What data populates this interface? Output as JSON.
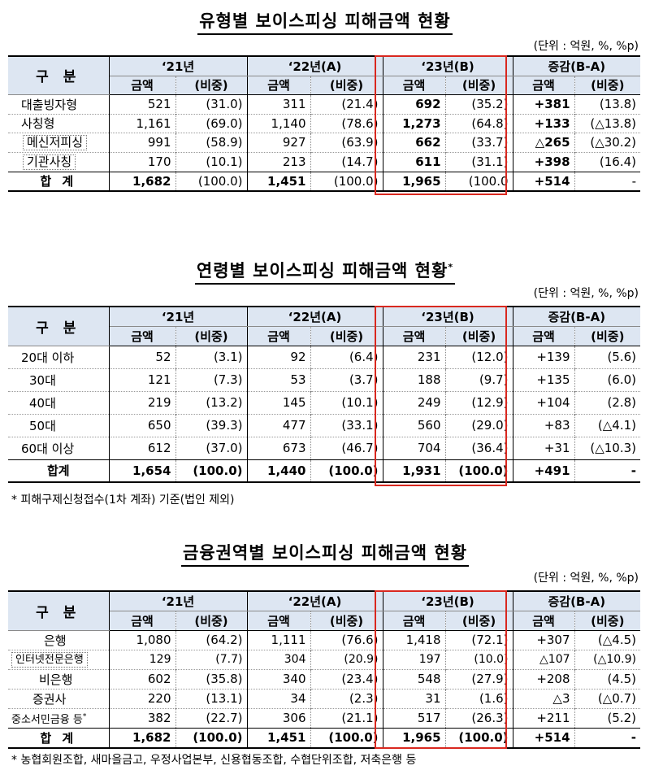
{
  "headers": {
    "gubun": "구 분",
    "y21": "‘21년",
    "y22": "‘22년(A)",
    "y23": "‘23년(B)",
    "diff": "증감(B-A)",
    "amount": "금액",
    "share": "(비중)"
  },
  "table1": {
    "title": "유형별 보이스피싱 피해금액 현황",
    "unit": "(단위 : 억원, %, %p)",
    "rows": [
      {
        "label": "대출빙자형",
        "c": [
          "521",
          "(31.0)",
          "311",
          "(21.4)",
          "692",
          "(35.2)",
          "+381",
          "(13.8)"
        ]
      },
      {
        "label": "사칭형",
        "c": [
          "1,161",
          "(69.0)",
          "1,140",
          "(78.6)",
          "1,273",
          "(64.8)",
          "+133",
          "(△13.8)"
        ]
      },
      {
        "label": "메신저피싱",
        "c": [
          "991",
          "(58.9)",
          "927",
          "(63.9)",
          "662",
          "(33.7)",
          "△265",
          "(△30.2)"
        ]
      },
      {
        "label": "기관사칭",
        "c": [
          "170",
          "(10.1)",
          "213",
          "(14.7)",
          "611",
          "(31.1)",
          "+398",
          "(16.4)"
        ]
      }
    ],
    "total": {
      "label": "합 계",
      "c": [
        "1,682",
        "(100.0)",
        "1,451",
        "(100.0)",
        "1,965",
        "(100.0",
        "+514",
        "-"
      ]
    }
  },
  "table2": {
    "title": "연령별 보이스피싱 피해금액 현황",
    "title_mark": "*",
    "unit": "(단위 : 억원, %, %p)",
    "rows": [
      {
        "label": "20대 이하",
        "c": [
          "52",
          "(3.1)",
          "92",
          "(6.4)",
          "231",
          "(12.0)",
          "+139",
          "(5.6)"
        ]
      },
      {
        "label": "30대",
        "c": [
          "121",
          "(7.3)",
          "53",
          "(3.7)",
          "188",
          "(9.7)",
          "+135",
          "(6.0)"
        ]
      },
      {
        "label": "40대",
        "c": [
          "219",
          "(13.2)",
          "145",
          "(10.1)",
          "249",
          "(12.9)",
          "+104",
          "(2.8)"
        ]
      },
      {
        "label": "50대",
        "c": [
          "650",
          "(39.3)",
          "477",
          "(33.1)",
          "560",
          "(29.0)",
          "+83",
          "(△4.1)"
        ]
      },
      {
        "label": "60대 이상",
        "c": [
          "612",
          "(37.0)",
          "673",
          "(46.7)",
          "704",
          "(36.4)",
          "+31",
          "(△10.3)"
        ]
      }
    ],
    "total": {
      "label": "합계",
      "c": [
        "1,654",
        "(100.0)",
        "1,440",
        "(100.0)",
        "1,931",
        "(100.0)",
        "+491",
        "-"
      ]
    },
    "note": "* 피해구제신청접수(1차 계좌) 기준(법인 제외)"
  },
  "table3": {
    "title": "금융권역별 보이스피싱 피해금액 현황",
    "unit": "(단위 : 억원, %, %p)",
    "rows": [
      {
        "label": "은행",
        "c": [
          "1,080",
          "(64.2)",
          "1,111",
          "(76.6)",
          "1,418",
          "(72.1)",
          "+307",
          "(△4.5)"
        ]
      },
      {
        "label": "인터넷전문은행",
        "c": [
          "129",
          "(7.7)",
          "304",
          "(20.9)",
          "197",
          "(10.0)",
          "△107",
          "(△10.9)"
        ]
      },
      {
        "label": "비은행",
        "c": [
          "602",
          "(35.8)",
          "340",
          "(23.4)",
          "548",
          "(27.9)",
          "+208",
          "(4.5)"
        ]
      },
      {
        "label": "증권사",
        "c": [
          "220",
          "(13.1)",
          "34",
          "(2.3)",
          "31",
          "(1.6)",
          "△3",
          "(△0.7)"
        ]
      },
      {
        "label": "중소서민금융 등",
        "c": [
          "382",
          "(22.7)",
          "306",
          "(21.1)",
          "517",
          "(26.3)",
          "+211",
          "(5.2)"
        ]
      }
    ],
    "total": {
      "label": "합 계",
      "c": [
        "1,682",
        "(100.0)",
        "1,451",
        "(100.0)",
        "1,965",
        "(100.0)",
        "+514",
        "-"
      ]
    },
    "note": "* 농협회원조합, 새마을금고, 우정사업본부, 신용협동조합, 수협단위조합, 저축은행 등"
  }
}
